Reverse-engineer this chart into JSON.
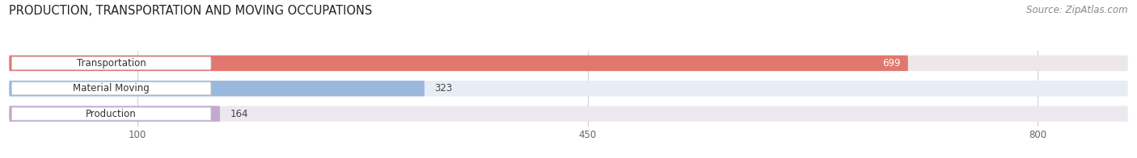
{
  "title": "PRODUCTION, TRANSPORTATION AND MOVING OCCUPATIONS",
  "source_text": "Source: ZipAtlas.com",
  "categories": [
    "Transportation",
    "Material Moving",
    "Production"
  ],
  "values": [
    699,
    323,
    164
  ],
  "bar_colors": [
    "#e07870",
    "#9ab8dc",
    "#c4a8d0"
  ],
  "bar_bg_colors": [
    "#ede8e8",
    "#e8edf5",
    "#ede8f0"
  ],
  "value_colors": [
    "#ffffff",
    "#444444",
    "#444444"
  ],
  "value_inside": [
    true,
    false,
    false
  ],
  "xlim": [
    0,
    870
  ],
  "xticks": [
    100,
    450,
    800
  ],
  "title_fontsize": 10.5,
  "source_fontsize": 8.5,
  "bar_height": 0.62,
  "background_color": "#ffffff",
  "label_bg_color": "#ffffff",
  "label_text_color": "#333333",
  "grid_color": "#d0d0d0"
}
